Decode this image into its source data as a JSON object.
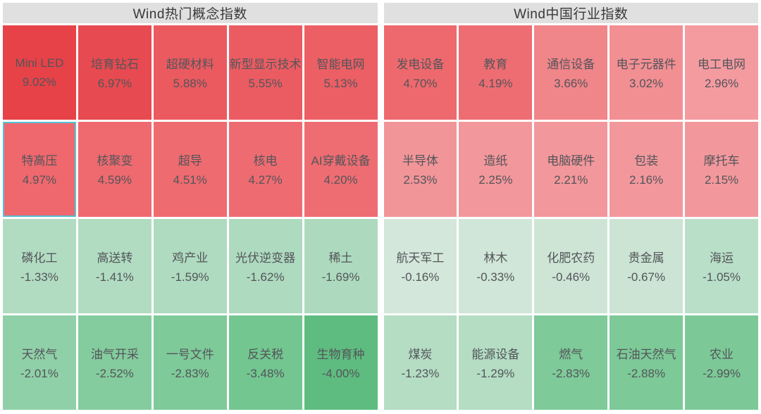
{
  "colors": {
    "page_bg": "#ffffff",
    "header_bg": "#e0e0e0",
    "header_text": "#383838",
    "tile_text": "#53555a",
    "selected_border": "#55c0d5",
    "positive_strong": "#e64247",
    "positive_weak": "#f49ba0",
    "negative_weak": "#d3e7da",
    "negative_strong": "#5ebc80"
  },
  "sections": [
    {
      "title": "Wind热门概念指数",
      "tiles": [
        {
          "name": "Mini LED",
          "pct": "9.02%",
          "bg": "#e64247",
          "selected": false
        },
        {
          "name": "培育钻石",
          "pct": "6.97%",
          "bg": "#e74a50",
          "selected": false
        },
        {
          "name": "超硬材料",
          "pct": "5.88%",
          "bg": "#eb5a5f",
          "selected": false
        },
        {
          "name": "新型显示技术",
          "pct": "5.55%",
          "bg": "#eb5c62",
          "selected": false
        },
        {
          "name": "智能电网",
          "pct": "5.13%",
          "bg": "#ec5f64",
          "selected": false
        },
        {
          "name": "特高压",
          "pct": "4.97%",
          "bg": "#ee686d",
          "selected": true
        },
        {
          "name": "核聚变",
          "pct": "4.59%",
          "bg": "#ee6a6f",
          "selected": false
        },
        {
          "name": "超导",
          "pct": "4.51%",
          "bg": "#ee6b70",
          "selected": false
        },
        {
          "name": "核电",
          "pct": "4.27%",
          "bg": "#ee6c71",
          "selected": false
        },
        {
          "name": "AI穿戴设备",
          "pct": "4.20%",
          "bg": "#ee6d72",
          "selected": false
        },
        {
          "name": "磷化工",
          "pct": "-1.33%",
          "bg": "#b2dcc2",
          "selected": false
        },
        {
          "name": "高送转",
          "pct": "-1.41%",
          "bg": "#b1dcc1",
          "selected": false
        },
        {
          "name": "鸡产业",
          "pct": "-1.59%",
          "bg": "#afdbc0",
          "selected": false
        },
        {
          "name": "光伏逆变器",
          "pct": "-1.62%",
          "bg": "#aedabf",
          "selected": false
        },
        {
          "name": "稀土",
          "pct": "-1.69%",
          "bg": "#addabe",
          "selected": false
        },
        {
          "name": "天然气",
          "pct": "-2.01%",
          "bg": "#90d0a8",
          "selected": false
        },
        {
          "name": "油气开采",
          "pct": "-2.52%",
          "bg": "#84cc9e",
          "selected": false
        },
        {
          "name": "一号文件",
          "pct": "-2.83%",
          "bg": "#7eca99",
          "selected": false
        },
        {
          "name": "反关税",
          "pct": "-3.48%",
          "bg": "#73c690",
          "selected": false
        },
        {
          "name": "生物育种",
          "pct": "-4.00%",
          "bg": "#5ebc80",
          "selected": false
        }
      ]
    },
    {
      "title": "Wind中国行业指数",
      "tiles": [
        {
          "name": "发电设备",
          "pct": "4.70%",
          "bg": "#ee696d",
          "selected": false
        },
        {
          "name": "教育",
          "pct": "4.19%",
          "bg": "#ee6d72",
          "selected": false
        },
        {
          "name": "通信设备",
          "pct": "3.66%",
          "bg": "#f0858a",
          "selected": false
        },
        {
          "name": "电子元器件",
          "pct": "3.02%",
          "bg": "#f28f93",
          "selected": false
        },
        {
          "name": "电工电网",
          "pct": "2.96%",
          "bg": "#f49ba0",
          "selected": false
        },
        {
          "name": "半导体",
          "pct": "2.53%",
          "bg": "#f19599",
          "selected": false
        },
        {
          "name": "造纸",
          "pct": "2.25%",
          "bg": "#f2979b",
          "selected": false
        },
        {
          "name": "电脑硬件",
          "pct": "2.21%",
          "bg": "#f2979b",
          "selected": false
        },
        {
          "name": "包装",
          "pct": "2.16%",
          "bg": "#f2989c",
          "selected": false
        },
        {
          "name": "摩托车",
          "pct": "2.15%",
          "bg": "#f2989c",
          "selected": false
        },
        {
          "name": "航天军工",
          "pct": "-0.16%",
          "bg": "#d3e7da",
          "selected": false
        },
        {
          "name": "林木",
          "pct": "-0.33%",
          "bg": "#d0e6d8",
          "selected": false
        },
        {
          "name": "化肥农药",
          "pct": "-0.46%",
          "bg": "#cee5d6",
          "selected": false
        },
        {
          "name": "贵金属",
          "pct": "-0.67%",
          "bg": "#cbe4d3",
          "selected": false
        },
        {
          "name": "海运",
          "pct": "-1.05%",
          "bg": "#b9dfc8",
          "selected": false
        },
        {
          "name": "煤炭",
          "pct": "-1.23%",
          "bg": "#b5ddc4",
          "selected": false
        },
        {
          "name": "能源设备",
          "pct": "-1.29%",
          "bg": "#b4ddc3",
          "selected": false
        },
        {
          "name": "燃气",
          "pct": "-2.83%",
          "bg": "#7eca99",
          "selected": false
        },
        {
          "name": "石油天然气",
          "pct": "-2.88%",
          "bg": "#7dc998",
          "selected": false
        },
        {
          "name": "农业",
          "pct": "-2.99%",
          "bg": "#7cc997",
          "selected": false
        }
      ]
    }
  ],
  "chart_data": [
    {
      "type": "heatmap",
      "title": "Wind热门概念指数",
      "grid": {
        "columns": 5,
        "rows": 4
      },
      "legend_position": "none",
      "color_rule": "red shades = positive change (darker = larger gain), green shades = negative change (darker = larger loss)",
      "categories": [
        "Mini LED",
        "培育钻石",
        "超硬材料",
        "新型显示技术",
        "智能电网",
        "特高压",
        "核聚变",
        "超导",
        "核电",
        "AI穿戴设备",
        "磷化工",
        "高送转",
        "鸡产业",
        "光伏逆变器",
        "稀土",
        "天然气",
        "油气开采",
        "一号文件",
        "反关税",
        "生物育种"
      ],
      "values": [
        9.02,
        6.97,
        5.88,
        5.55,
        5.13,
        4.97,
        4.59,
        4.51,
        4.27,
        4.2,
        -1.33,
        -1.41,
        -1.59,
        -1.62,
        -1.69,
        -2.01,
        -2.52,
        -2.83,
        -3.48,
        -4.0
      ],
      "unit": "%",
      "selected_cell": "特高压"
    },
    {
      "type": "heatmap",
      "title": "Wind中国行业指数",
      "grid": {
        "columns": 5,
        "rows": 4
      },
      "legend_position": "none",
      "color_rule": "red shades = positive change (darker = larger gain), green shades = negative change (darker = larger loss)",
      "categories": [
        "发电设备",
        "教育",
        "通信设备",
        "电子元器件",
        "电工电网",
        "半导体",
        "造纸",
        "电脑硬件",
        "包装",
        "摩托车",
        "航天军工",
        "林木",
        "化肥农药",
        "贵金属",
        "海运",
        "煤炭",
        "能源设备",
        "燃气",
        "石油天然气",
        "农业"
      ],
      "values": [
        4.7,
        4.19,
        3.66,
        3.02,
        2.96,
        2.53,
        2.25,
        2.21,
        2.16,
        2.15,
        -0.16,
        -0.33,
        -0.46,
        -0.67,
        -1.05,
        -1.23,
        -1.29,
        -2.83,
        -2.88,
        -2.99
      ],
      "unit": "%",
      "selected_cell": null
    }
  ]
}
